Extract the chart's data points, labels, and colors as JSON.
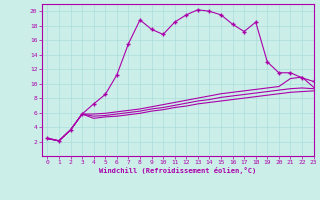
{
  "xlabel": "Windchill (Refroidissement éolien,°C)",
  "bg_color": "#cceee8",
  "line_color": "#aa00aa",
  "grid_color": "#aaddda",
  "series1_x": [
    0,
    1,
    2,
    3,
    4,
    5,
    6,
    7,
    8,
    9,
    10,
    11,
    12,
    13,
    14,
    15,
    16,
    17,
    18,
    19,
    20,
    21,
    22,
    23
  ],
  "series1_y": [
    2.5,
    2.1,
    3.6,
    5.8,
    7.2,
    8.5,
    11.2,
    15.5,
    18.8,
    17.5,
    16.8,
    18.5,
    19.5,
    20.2,
    20.0,
    19.5,
    18.2,
    17.2,
    18.5,
    13.0,
    11.5,
    11.5,
    10.8,
    10.3
  ],
  "series2_x": [
    0,
    1,
    2,
    3,
    4,
    5,
    6,
    7,
    8,
    9,
    10,
    11,
    12,
    13,
    14,
    15,
    16,
    17,
    18,
    19,
    20,
    21,
    22,
    23
  ],
  "series2_y": [
    2.4,
    2.1,
    3.6,
    5.8,
    5.8,
    5.9,
    6.1,
    6.3,
    6.5,
    6.8,
    7.1,
    7.4,
    7.7,
    8.0,
    8.3,
    8.6,
    8.8,
    9.0,
    9.2,
    9.4,
    9.6,
    10.7,
    10.9,
    9.5
  ],
  "series3_x": [
    0,
    1,
    2,
    3,
    4,
    5,
    6,
    7,
    8,
    9,
    10,
    11,
    12,
    13,
    14,
    15,
    16,
    17,
    18,
    19,
    20,
    21,
    22,
    23
  ],
  "series3_y": [
    2.4,
    2.1,
    3.6,
    5.8,
    5.5,
    5.6,
    5.8,
    6.0,
    6.2,
    6.5,
    6.7,
    7.0,
    7.3,
    7.6,
    7.8,
    8.1,
    8.3,
    8.5,
    8.7,
    8.9,
    9.1,
    9.3,
    9.4,
    9.3
  ],
  "series4_x": [
    0,
    1,
    2,
    3,
    4,
    5,
    6,
    7,
    8,
    9,
    10,
    11,
    12,
    13,
    14,
    15,
    16,
    17,
    18,
    19,
    20,
    21,
    22,
    23
  ],
  "series4_y": [
    2.4,
    2.1,
    3.6,
    5.8,
    5.2,
    5.4,
    5.5,
    5.7,
    5.9,
    6.2,
    6.4,
    6.7,
    6.9,
    7.2,
    7.4,
    7.6,
    7.8,
    8.0,
    8.2,
    8.4,
    8.6,
    8.8,
    8.9,
    9.0
  ],
  "ylim": [
    0,
    21
  ],
  "xlim": [
    -0.5,
    23
  ],
  "yticks": [
    2,
    4,
    6,
    8,
    10,
    12,
    14,
    16,
    18,
    20
  ],
  "xticks": [
    0,
    1,
    2,
    3,
    4,
    5,
    6,
    7,
    8,
    9,
    10,
    11,
    12,
    13,
    14,
    15,
    16,
    17,
    18,
    19,
    20,
    21,
    22,
    23
  ]
}
